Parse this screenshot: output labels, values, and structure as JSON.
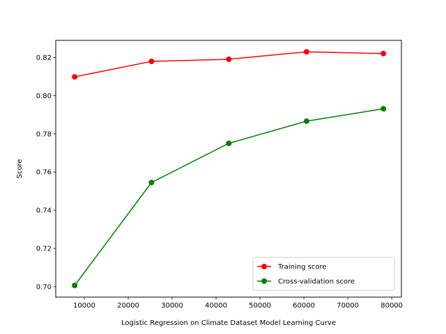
{
  "chart_data": {
    "type": "line",
    "title": "",
    "xlabel": "Logistic Regression on Climate Dataset Model Learning Curve",
    "ylabel": "Score",
    "xlim": [
      3500,
      82200
    ],
    "ylim": [
      0.6945,
      0.8289
    ],
    "x_ticks": [
      10000,
      20000,
      30000,
      40000,
      50000,
      60000,
      70000,
      80000
    ],
    "x_tick_labels": [
      "10000",
      "20000",
      "30000",
      "40000",
      "50000",
      "60000",
      "70000",
      "80000"
    ],
    "y_ticks": [
      0.7,
      0.72,
      0.74,
      0.76,
      0.78,
      0.8,
      0.82
    ],
    "y_tick_labels": [
      "0.70",
      "0.72",
      "0.74",
      "0.76",
      "0.78",
      "0.80",
      "0.82"
    ],
    "grid": false,
    "legend_position": "lower-right",
    "x": [
      7800,
      25300,
      42900,
      60600,
      78100
    ],
    "series": [
      {
        "name": "Training score",
        "color": "#ff0000",
        "marker": "circle",
        "values": [
          0.8098,
          0.8179,
          0.819,
          0.8229,
          0.822
        ]
      },
      {
        "name": "Cross-validation score",
        "color": "#008000",
        "marker": "circle",
        "values": [
          0.7006,
          0.7545,
          0.775,
          0.7866,
          0.7931
        ]
      }
    ]
  }
}
